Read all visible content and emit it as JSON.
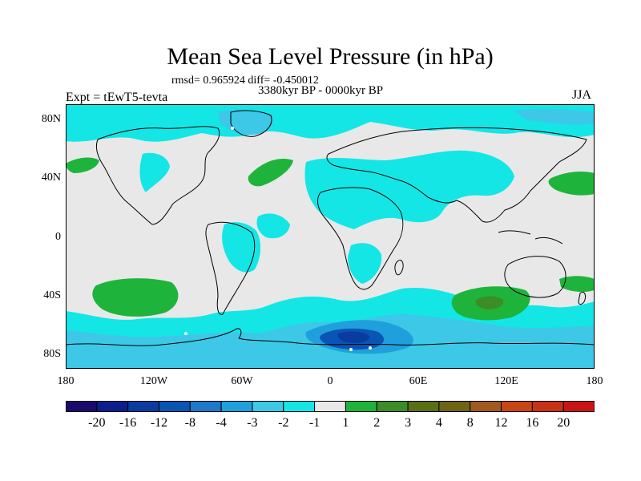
{
  "title": "Mean Sea Level Pressure (in hPa)",
  "stats": "rmsd= 0.965924 diff= -0.450012",
  "period": "3380kyr BP - 0000kyr BP",
  "experiment": "Expt = tEwT5-tevta",
  "season": "JJA",
  "y_ticks": [
    {
      "label": "80N",
      "lat": 80
    },
    {
      "label": "40N",
      "lat": 40
    },
    {
      "label": "0",
      "lat": 0
    },
    {
      "label": "40S",
      "lat": -40
    },
    {
      "label": "80S",
      "lat": -80
    }
  ],
  "x_ticks": [
    {
      "label": "180",
      "lon": -180
    },
    {
      "label": "120W",
      "lon": -120
    },
    {
      "label": "60W",
      "lon": -60
    },
    {
      "label": "0",
      "lon": 0
    },
    {
      "label": "60E",
      "lon": 60
    },
    {
      "label": "120E",
      "lon": 120
    },
    {
      "label": "180",
      "lon": 180
    }
  ],
  "legend": {
    "colors": [
      "#1a0a6e",
      "#0a1e8c",
      "#0a3ca0",
      "#0a55b4",
      "#1f78c8",
      "#1fa0dc",
      "#3cc8e6",
      "#14e6e6",
      "#e8e8e8",
      "#1eb43c",
      "#3c8c28",
      "#5a6e14",
      "#6e6414",
      "#a05a1e",
      "#c84614",
      "#c83214",
      "#c81414"
    ],
    "labels": [
      "-20",
      "-16",
      "-12",
      "-8",
      "-4",
      "-3",
      "-2",
      "-1",
      "1",
      "2",
      "3",
      "4",
      "8",
      "12",
      "16",
      "20"
    ]
  },
  "palette": {
    "neutral": "#e8e8e8",
    "cyan": "#14e6e6",
    "sky": "#3cc8e6",
    "blue": "#1fa0dc",
    "deep_blue": "#0a55b4",
    "darkest_blue": "#0a3ca0",
    "green": "#1eb43c",
    "olive": "#3c8c28"
  }
}
